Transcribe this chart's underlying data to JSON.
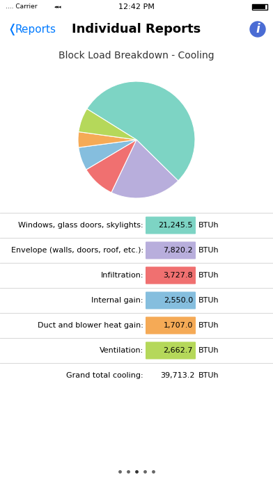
{
  "title_bar": "Block Load Breakdown - Cooling",
  "nav_title": "Individual Reports",
  "nav_back": "Reports",
  "status_time": "12:42 PM",
  "pie_values": [
    21245.5,
    7820.2,
    3727.8,
    2550.0,
    1707.0,
    2662.7
  ],
  "pie_colors": [
    "#7DD4C4",
    "#B8AEDC",
    "#F07070",
    "#85BEDE",
    "#F5AA56",
    "#B5D85A"
  ],
  "table_rows": [
    {
      "label": "Windows, glass doors, skylights:",
      "value": "21,245.5",
      "color": "#7DD4C4"
    },
    {
      "label": "Envelope (walls, doors, roof, etc.):",
      "value": "7,820.2",
      "color": "#B8AEDC"
    },
    {
      "label": "Infiltration:",
      "value": "3,727.8",
      "color": "#F07070"
    },
    {
      "label": "Internal gain:",
      "value": "2,550.0",
      "color": "#85BEDE"
    },
    {
      "label": "Duct and blower heat gain:",
      "value": "1,707.0",
      "color": "#F5AA56"
    },
    {
      "label": "Ventilation:",
      "value": "2,662.7",
      "color": "#B5D85A"
    },
    {
      "label": "Grand total cooling:",
      "value": "39,713.2",
      "color": null
    }
  ],
  "unit": "BTUh",
  "bg_color": "#ffffff",
  "bottom_bg": "#C8C8C8",
  "separator_color": "#D0D0D0",
  "title_bar_bg": "#DCDCDC",
  "nav_bg": "#ffffff",
  "status_bg": "#ffffff",
  "pie_startangle": 148,
  "pie_counterclock": false
}
